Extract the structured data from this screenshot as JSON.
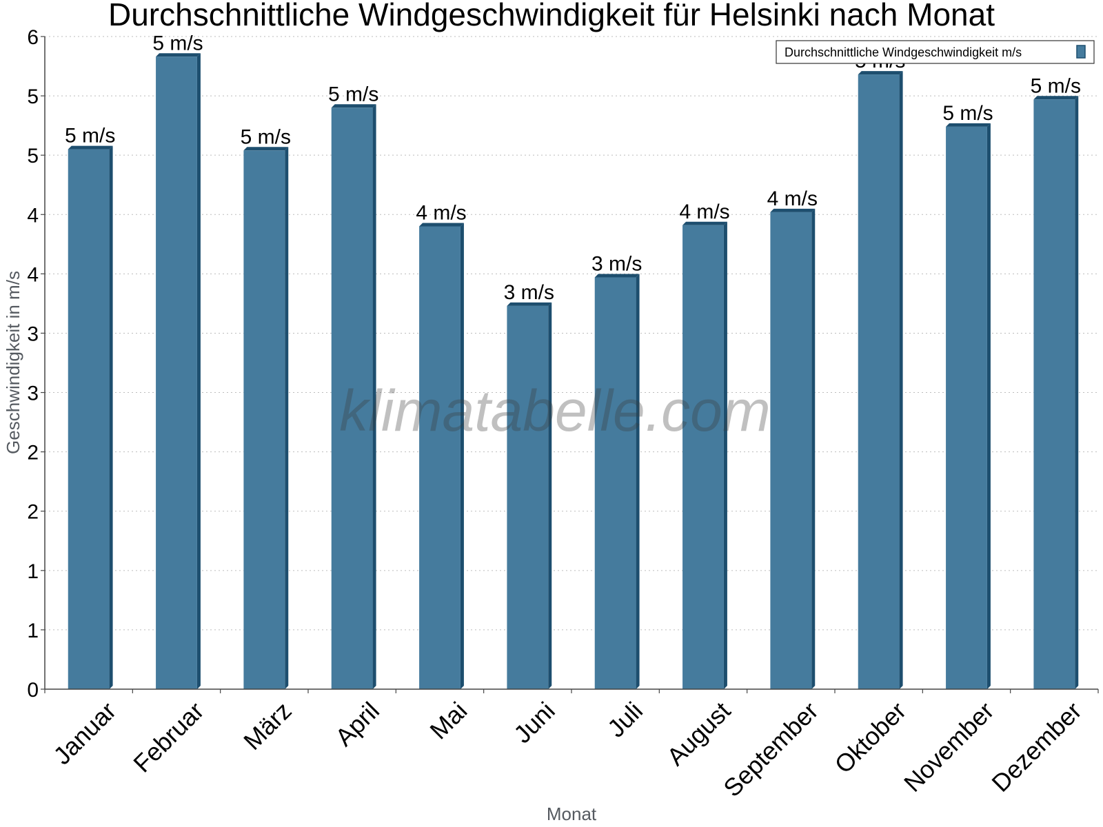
{
  "chart_data": {
    "type": "bar",
    "title": "Durchschnittliche Windgeschwindigkeit für Helsinki nach Monat",
    "xlabel": "Monat",
    "ylabel": "Geschwindigkeit in m/s",
    "categories": [
      "Januar",
      "Februar",
      "März",
      "April",
      "Mai",
      "Juni",
      "Juli",
      "August",
      "September",
      "Oktober",
      "November",
      "Dezember"
    ],
    "series": [
      {
        "name": "Durchschnittliche Windgeschwindigkeit m/s",
        "values": [
          4.55,
          5.33,
          4.54,
          4.9,
          3.9,
          3.23,
          3.47,
          3.91,
          4.02,
          5.18,
          4.74,
          4.97
        ],
        "labels": [
          "5 m/s",
          "5 m/s",
          "5 m/s",
          "5 m/s",
          "4 m/s",
          "3 m/s",
          "3 m/s",
          "4 m/s",
          "4 m/s",
          "5 m/s",
          "5 m/s",
          "5 m/s"
        ]
      }
    ],
    "ylim": [
      0,
      5.5
    ],
    "yticks": [
      0,
      0.5,
      1,
      1.5,
      2,
      2.5,
      3,
      3.5,
      4,
      4.5,
      5,
      5.5
    ],
    "ytick_labels": [
      "0",
      "1",
      "1",
      "2",
      "2",
      "3",
      "3",
      "4",
      "4",
      "5",
      "5",
      "6"
    ],
    "grid": true,
    "legend_position": "top-right",
    "colors": {
      "bar": "#457b9d",
      "bar_side": "#1d4e6e",
      "grid": "#bbbbbb",
      "axis": "#444444"
    }
  },
  "watermark": "klimatabelle.com"
}
